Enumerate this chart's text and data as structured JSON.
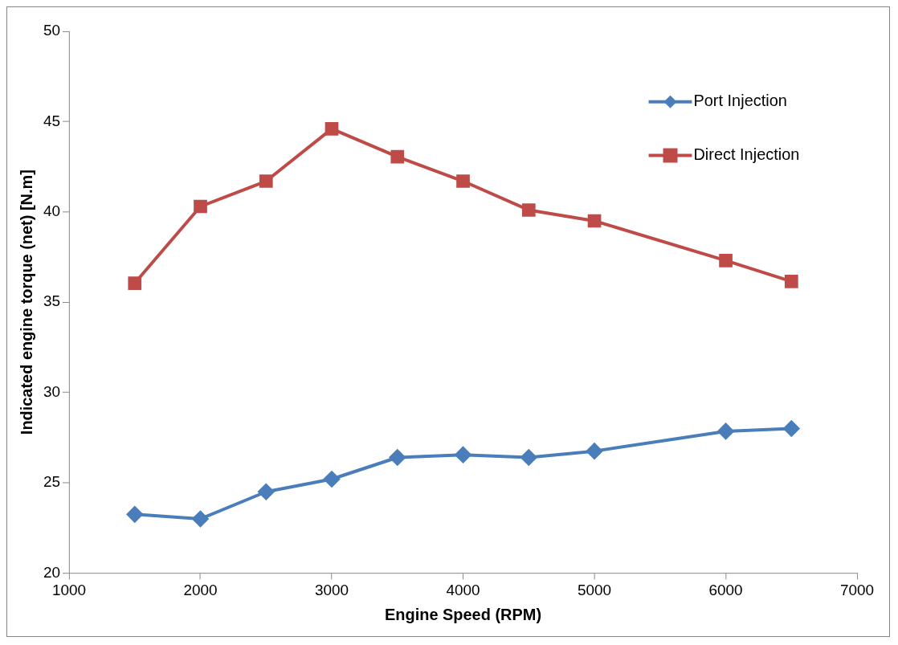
{
  "chart_data": {
    "type": "line",
    "xlabel": "Engine Speed (RPM)",
    "ylabel": "Indicated engine torque (net) [N.m]",
    "x": [
      1500,
      2000,
      2500,
      3000,
      3500,
      4000,
      4500,
      5000,
      6000,
      6500
    ],
    "series": [
      {
        "name": "Port Injection",
        "color": "#4a7ebb",
        "marker": "diamond",
        "values": [
          23.25,
          23.0,
          24.5,
          25.2,
          26.4,
          26.55,
          26.4,
          26.75,
          27.85,
          28.0
        ]
      },
      {
        "name": "Direct Injection",
        "color": "#be4b48",
        "marker": "square",
        "values": [
          36.05,
          40.3,
          41.7,
          44.6,
          43.05,
          41.7,
          40.1,
          39.5,
          37.3,
          36.15
        ]
      }
    ],
    "xlim": [
      1000,
      7000
    ],
    "xticks": [
      1000,
      2000,
      3000,
      4000,
      5000,
      6000,
      7000
    ],
    "ylim": [
      20,
      50
    ],
    "yticks": [
      20,
      25,
      30,
      35,
      40,
      45,
      50
    ],
    "grid": false,
    "legend": "top right",
    "line_style": "solid"
  }
}
